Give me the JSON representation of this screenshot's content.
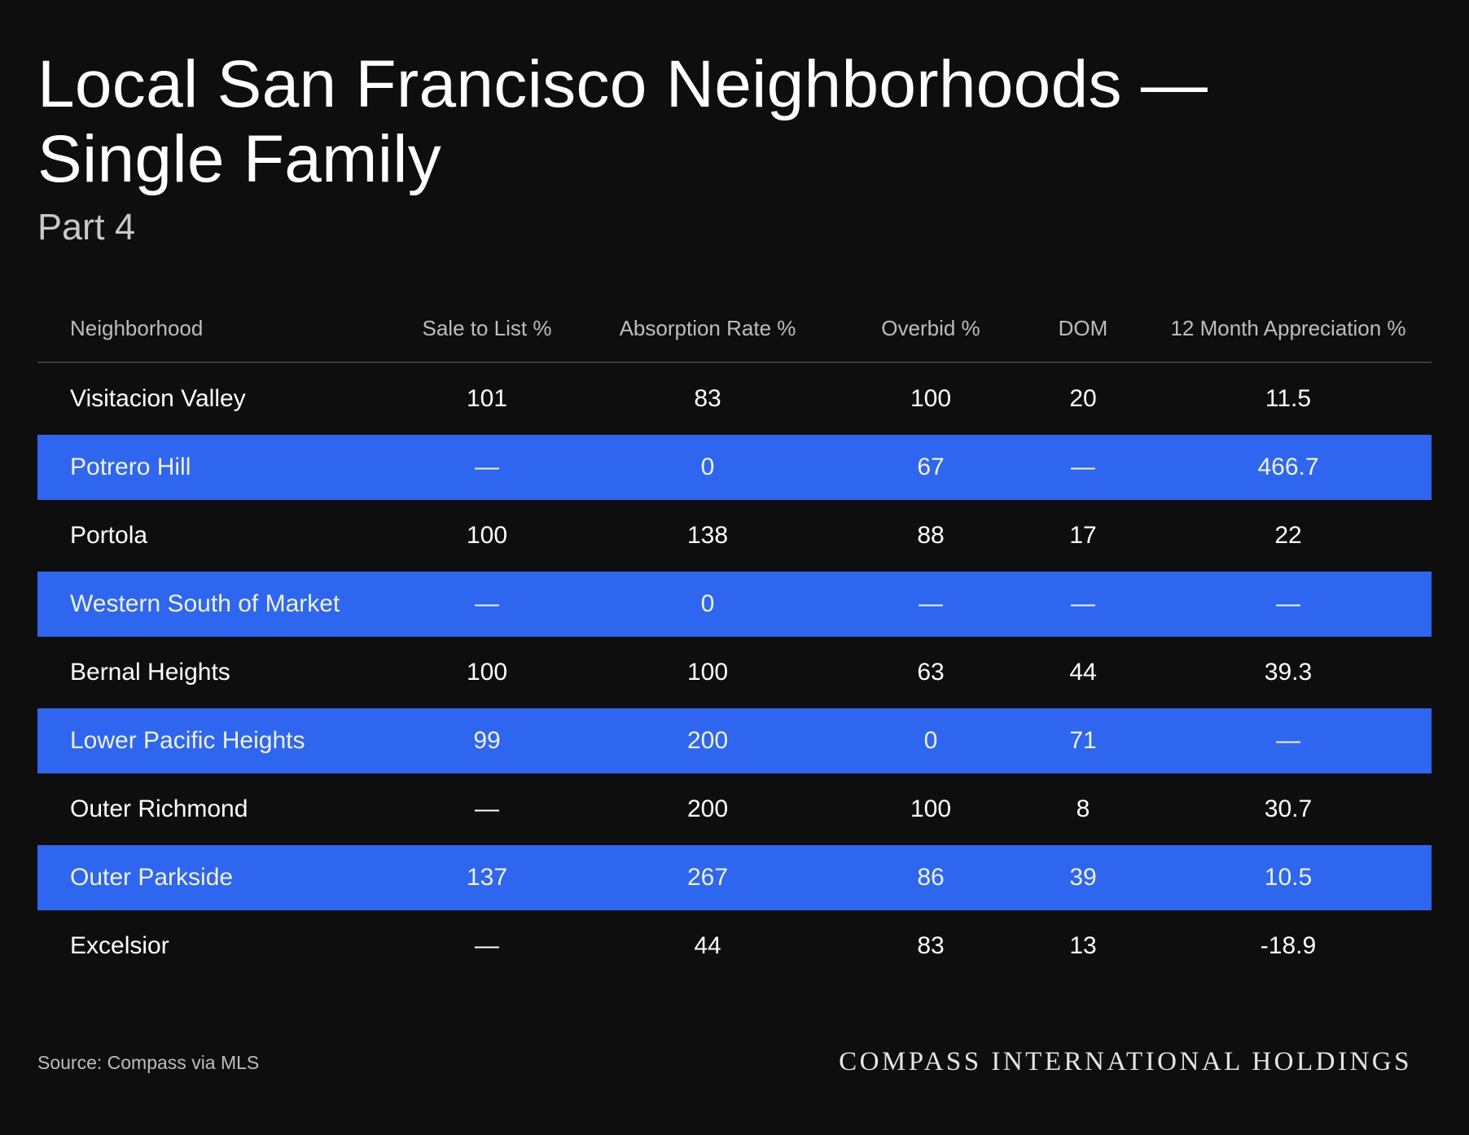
{
  "header": {
    "title": "Local San Francisco Neighborhoods — Single Family",
    "subtitle": "Part 4"
  },
  "table": {
    "columns": [
      "Neighborhood",
      "Sale to List %",
      "Absorption Rate %",
      "Overbid %",
      "DOM",
      "12 Month Appreciation %"
    ],
    "rows": [
      {
        "cells": [
          "Visitacion Valley",
          "101",
          "83",
          "100",
          "20",
          "11.5"
        ],
        "highlighted": false
      },
      {
        "cells": [
          "Potrero Hill",
          "—",
          "0",
          "67",
          "—",
          "466.7"
        ],
        "highlighted": true
      },
      {
        "cells": [
          "Portola",
          "100",
          "138",
          "88",
          "17",
          "22"
        ],
        "highlighted": false
      },
      {
        "cells": [
          "Western South of Market",
          "—",
          "0",
          "—",
          "—",
          "—"
        ],
        "highlighted": true
      },
      {
        "cells": [
          "Bernal Heights",
          "100",
          "100",
          "63",
          "44",
          "39.3"
        ],
        "highlighted": false
      },
      {
        "cells": [
          "Lower Pacific Heights",
          "99",
          "200",
          "0",
          "71",
          "—"
        ],
        "highlighted": true
      },
      {
        "cells": [
          "Outer Richmond",
          "—",
          "200",
          "100",
          "8",
          "30.7"
        ],
        "highlighted": false
      },
      {
        "cells": [
          "Outer Parkside",
          "137",
          "267",
          "86",
          "39",
          "10.5"
        ],
        "highlighted": true
      },
      {
        "cells": [
          "Excelsior",
          "—",
          "44",
          "83",
          "13",
          "-18.9"
        ],
        "highlighted": false
      }
    ]
  },
  "footer": {
    "source": "Source: Compass via MLS",
    "brand": "COMPASS INTERNATIONAL HOLDINGS"
  },
  "colors": {
    "background": "#0e0e0f",
    "highlight_row": "#2e66f0",
    "text": "#ffffff",
    "muted_text": "#bdbdbd"
  }
}
